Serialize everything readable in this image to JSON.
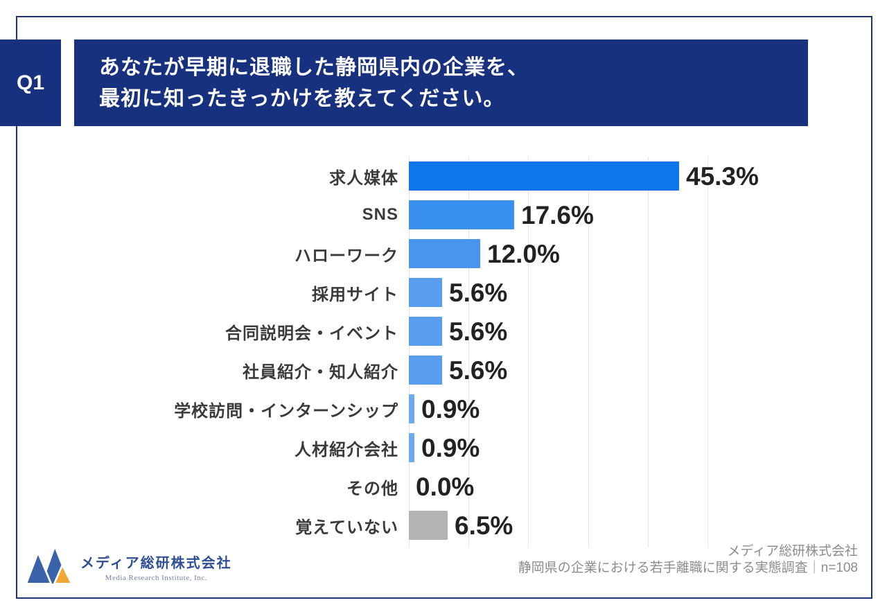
{
  "header": {
    "q_label": "Q1",
    "title_line1": "あなたが早期に退職した静岡県内の企業を、",
    "title_line2": "最初に知ったきっかけを教えてください。"
  },
  "chart_data": {
    "type": "bar",
    "orientation": "horizontal",
    "categories": [
      "求人媒体",
      "SNS",
      "ハローワーク",
      "採用サイト",
      "合同説明会・イベント",
      "社員紹介・知人紹介",
      "学校訪問・インターンシップ",
      "人材紹介会社",
      "その他",
      "覚えていない"
    ],
    "values": [
      45.3,
      17.6,
      12.0,
      5.6,
      5.6,
      5.6,
      0.9,
      0.9,
      0.0,
      6.5
    ],
    "value_labels": [
      "45.3%",
      "17.6%",
      "12.0%",
      "5.6%",
      "5.6%",
      "5.6%",
      "0.9%",
      "0.9%",
      "0.0%",
      "6.5%"
    ],
    "bar_colors": [
      "#0e76e8",
      "#3990ee",
      "#4795ef",
      "#589df0",
      "#589df0",
      "#589df0",
      "#6ea9f2",
      "#6ea9f2",
      "#589df0",
      "#b3b3b3"
    ],
    "xlim": [
      0,
      50
    ],
    "ticks": [
      0,
      10,
      20,
      30,
      40,
      50
    ],
    "grid": "vertical-light-gray",
    "legend": "none",
    "title": ""
  },
  "footer": {
    "logo_company": "メディア総研株式会社",
    "logo_company_en": "Media Research Institute, Inc.",
    "source_line1": "メディア総研株式会社",
    "source_line2": "静岡県の企業における若手離職に関する実態調査｜n=108"
  },
  "colors": {
    "banner_navy": "#17317f",
    "frame_navy": "#1d3577",
    "highlight_bar_blue": "#0e76e8",
    "bar_blue": "#589df0",
    "gray_bar": "#b3b3b3",
    "gridline": "#e4e4e4",
    "logo_blue": "#3a62a8",
    "logo_yellow": "#f0a832"
  }
}
